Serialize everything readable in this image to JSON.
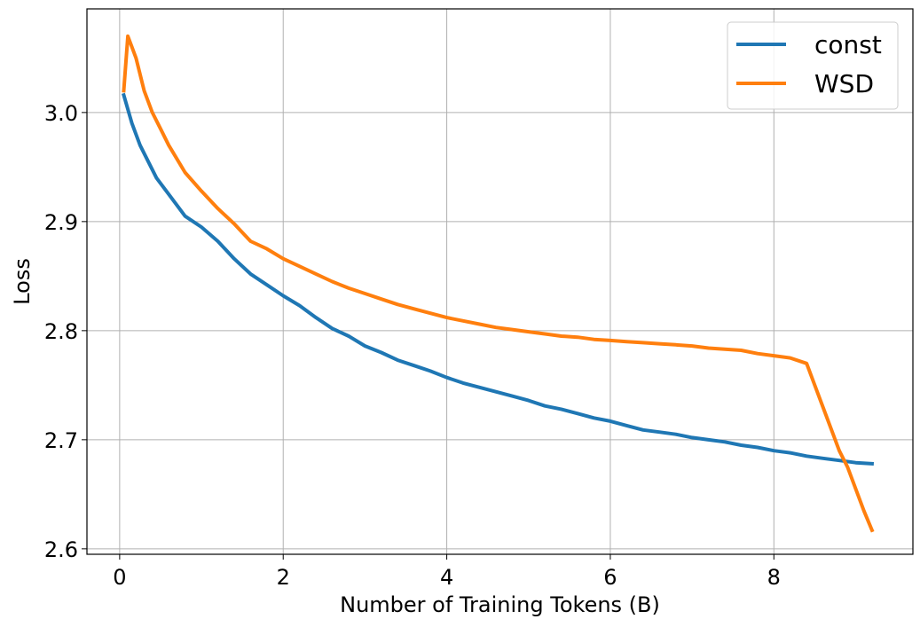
{
  "chart_data": {
    "type": "line",
    "title": "",
    "xlabel": "Number of Training Tokens (B)",
    "ylabel": "Loss",
    "xlim": [
      -0.4,
      9.7
    ],
    "ylim": [
      2.595,
      3.095
    ],
    "xticks": [
      0,
      2,
      4,
      6,
      8
    ],
    "xtick_labels": [
      "0",
      "2",
      "4",
      "6",
      "8"
    ],
    "yticks": [
      2.6,
      2.7,
      2.8,
      2.9,
      3.0
    ],
    "ytick_labels": [
      "2.6",
      "2.7",
      "2.8",
      "2.9",
      "3.0"
    ],
    "grid": true,
    "legend": "top-right",
    "series": [
      {
        "name": "const",
        "color": "#1f77b4",
        "x": [
          0.05,
          0.15,
          0.25,
          0.35,
          0.45,
          0.6,
          0.8,
          1.0,
          1.2,
          1.4,
          1.6,
          1.8,
          2.0,
          2.2,
          2.4,
          2.6,
          2.8,
          3.0,
          3.2,
          3.4,
          3.6,
          3.8,
          4.0,
          4.2,
          4.4,
          4.6,
          4.8,
          5.0,
          5.2,
          5.4,
          5.6,
          5.8,
          6.0,
          6.2,
          6.4,
          6.6,
          6.8,
          7.0,
          7.2,
          7.4,
          7.6,
          7.8,
          8.0,
          8.2,
          8.4,
          8.6,
          8.8,
          9.0,
          9.2
        ],
        "values": [
          3.016,
          2.99,
          2.97,
          2.955,
          2.94,
          2.925,
          2.905,
          2.895,
          2.882,
          2.866,
          2.852,
          2.842,
          2.832,
          2.823,
          2.812,
          2.802,
          2.795,
          2.786,
          2.78,
          2.773,
          2.768,
          2.763,
          2.757,
          2.752,
          2.748,
          2.744,
          2.74,
          2.736,
          2.731,
          2.728,
          2.724,
          2.72,
          2.717,
          2.713,
          2.709,
          2.707,
          2.705,
          2.702,
          2.7,
          2.698,
          2.695,
          2.693,
          2.69,
          2.688,
          2.685,
          2.683,
          2.681,
          2.679,
          2.678
        ]
      },
      {
        "name": "WSD",
        "color": "#ff7f0e",
        "x": [
          0.05,
          0.1,
          0.15,
          0.2,
          0.3,
          0.4,
          0.5,
          0.6,
          0.8,
          1.0,
          1.2,
          1.4,
          1.6,
          1.8,
          2.0,
          2.2,
          2.4,
          2.6,
          2.8,
          3.0,
          3.2,
          3.4,
          3.6,
          3.8,
          4.0,
          4.2,
          4.4,
          4.6,
          4.8,
          5.0,
          5.2,
          5.4,
          5.6,
          5.8,
          6.0,
          6.2,
          6.4,
          6.6,
          6.8,
          7.0,
          7.2,
          7.4,
          7.6,
          7.8,
          8.0,
          8.2,
          8.4,
          8.5,
          8.6,
          8.7,
          8.8,
          8.9,
          9.0,
          9.1,
          9.2
        ],
        "values": [
          3.02,
          3.07,
          3.06,
          3.05,
          3.02,
          3.0,
          2.985,
          2.97,
          2.945,
          2.928,
          2.912,
          2.898,
          2.882,
          2.875,
          2.866,
          2.859,
          2.852,
          2.845,
          2.839,
          2.834,
          2.829,
          2.824,
          2.82,
          2.816,
          2.812,
          2.809,
          2.806,
          2.803,
          2.801,
          2.799,
          2.797,
          2.795,
          2.794,
          2.792,
          2.791,
          2.79,
          2.789,
          2.788,
          2.787,
          2.786,
          2.784,
          2.783,
          2.782,
          2.779,
          2.777,
          2.775,
          2.77,
          2.75,
          2.73,
          2.71,
          2.69,
          2.675,
          2.655,
          2.635,
          2.617
        ]
      }
    ]
  }
}
